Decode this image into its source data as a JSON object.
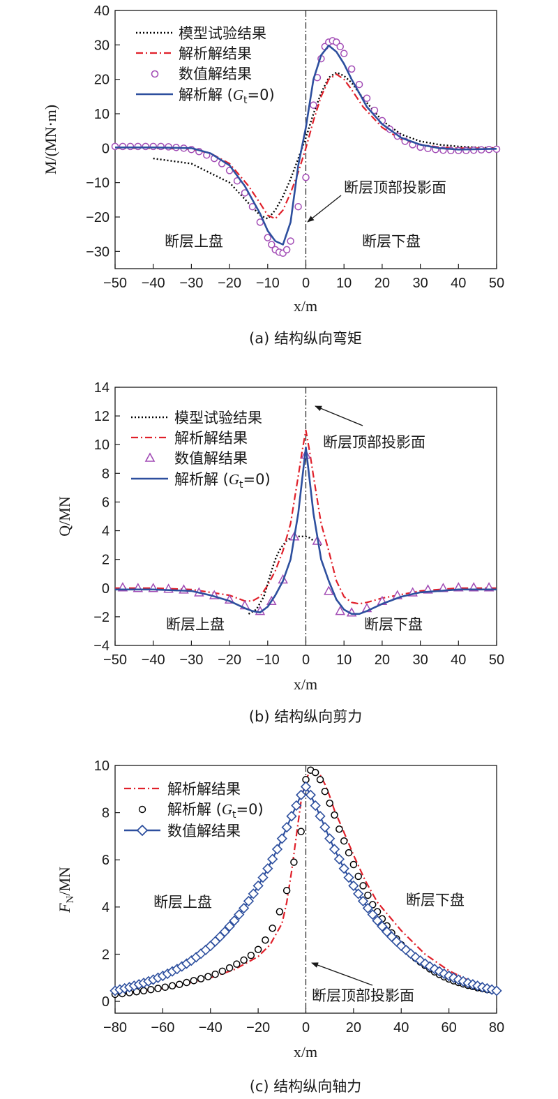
{
  "chart_data": [
    {
      "type": "line",
      "caption": "(a) 结构纵向弯矩",
      "xlabel": "x/m",
      "ylabel": "M/(MN·m)",
      "xlim": [
        -50,
        50
      ],
      "ylim": [
        -35,
        40
      ],
      "xticks": [
        "−50",
        "−40",
        "−30",
        "−20",
        "−10",
        "0",
        "10",
        "20",
        "30",
        "40",
        "50"
      ],
      "yticks": [
        "−30",
        "−20",
        "−10",
        "0",
        "10",
        "20",
        "30",
        "40"
      ],
      "legend_position": "top-left",
      "series": [
        {
          "name": "模型试验结果",
          "style": "dotted",
          "color": "#000000",
          "x": [
            -40,
            -30,
            -20,
            -15,
            -12,
            -10,
            -8,
            -6,
            -4,
            -2,
            0,
            2,
            4,
            6,
            8,
            10,
            12,
            15,
            20,
            25,
            30,
            35,
            40,
            45,
            50
          ],
          "y": [
            -3,
            -4.5,
            -10,
            -16,
            -19.5,
            -20.5,
            -18,
            -14,
            -9,
            -3,
            3,
            10,
            16,
            20.5,
            22,
            21,
            19,
            14.5,
            8,
            4,
            2,
            1,
            0.5,
            0.2,
            0
          ]
        },
        {
          "name": "解析解结果",
          "style": "dashdot",
          "color": "#e0202a",
          "x": [
            -50,
            -40,
            -30,
            -25,
            -20,
            -15,
            -12,
            -10,
            -8,
            -6,
            -4,
            -2,
            0,
            2,
            4,
            6,
            8,
            10,
            12,
            15,
            20,
            25,
            30,
            35,
            40,
            50
          ],
          "y": [
            0,
            0,
            -0.3,
            -1.5,
            -4.5,
            -11,
            -16,
            -19.5,
            -20.5,
            -18,
            -13,
            -7,
            0,
            8,
            15,
            20,
            21.5,
            20,
            17,
            12,
            6,
            2.5,
            1,
            0.3,
            0,
            0
          ]
        },
        {
          "name": "数值解结果",
          "style": "circles",
          "color": "#a24cb5",
          "x": [
            -50,
            -48,
            -46,
            -44,
            -42,
            -40,
            -38,
            -36,
            -34,
            -32,
            -30,
            -28,
            -26,
            -24,
            -22,
            -20,
            -18,
            -16,
            -14,
            -12,
            -10,
            -9,
            -8,
            -7,
            -6,
            -5,
            -4,
            -2,
            0,
            2,
            3,
            4,
            5,
            6,
            7,
            8,
            9,
            10,
            12,
            14,
            16,
            18,
            20,
            22,
            24,
            26,
            28,
            30,
            32,
            34,
            36,
            38,
            40,
            42,
            44,
            46,
            48,
            50
          ],
          "y": [
            0.5,
            0.5,
            0.5,
            0.5,
            0.5,
            0.5,
            0.5,
            0.4,
            0.2,
            0,
            -0.4,
            -1,
            -2,
            -3,
            -4.5,
            -6.5,
            -9.5,
            -13,
            -17,
            -21.5,
            -26,
            -28,
            -29.5,
            -30.2,
            -30.5,
            -29.5,
            -27,
            -17,
            -8.5,
            12.5,
            20.5,
            26,
            29.5,
            30.8,
            31.2,
            30.8,
            29.5,
            27.5,
            23,
            18.5,
            14.5,
            11,
            8,
            5.5,
            3.5,
            2,
            1,
            0.3,
            -0.1,
            -0.4,
            -0.6,
            -0.7,
            -0.7,
            -0.7,
            -0.6,
            -0.5,
            -0.4,
            -0.3
          ]
        },
        {
          "name": "解析解 (Gt=0)",
          "style": "solid",
          "color": "#2d4f9e",
          "x": [
            -50,
            -40,
            -30,
            -25,
            -20,
            -16,
            -12,
            -10,
            -8,
            -6,
            -4,
            -2,
            0,
            2,
            4,
            6,
            8,
            10,
            12,
            14,
            16,
            20,
            25,
            30,
            35,
            40,
            50
          ],
          "y": [
            0.2,
            0.2,
            0,
            -1.5,
            -5,
            -11,
            -19,
            -24,
            -27,
            -28,
            -21.5,
            -5,
            6,
            20,
            27,
            29.8,
            28,
            24.5,
            20,
            16,
            12,
            7,
            3,
            1,
            0,
            -0.4,
            -0.2
          ]
        }
      ],
      "annotations": [
        "断层顶部投影面",
        "断层上盘",
        "断层下盘"
      ]
    },
    {
      "type": "line",
      "caption": "(b) 结构纵向剪力",
      "xlabel": "x/m",
      "ylabel": "Q/MN",
      "xlim": [
        -50,
        50
      ],
      "ylim": [
        -4,
        14
      ],
      "xticks": [
        "−50",
        "−40",
        "−30",
        "−20",
        "−10",
        "0",
        "10",
        "20",
        "30",
        "40",
        "50"
      ],
      "yticks": [
        "−4",
        "−2",
        "0",
        "2",
        "4",
        "6",
        "8",
        "10",
        "12",
        "14"
      ],
      "legend_position": "top-left",
      "series": [
        {
          "name": "模型试验结果",
          "style": "dotted",
          "color": "#000000",
          "x": [
            -15,
            -13,
            -11,
            -10,
            -9,
            -8,
            -7,
            -6,
            -5,
            -4,
            -3,
            -2,
            -1,
            0,
            1,
            2,
            3,
            4
          ],
          "y": [
            -1.8,
            -1.5,
            -0.6,
            0.3,
            1.2,
            2,
            2.6,
            3,
            3.3,
            3.5,
            3.6,
            3.6,
            3.6,
            3.6,
            3.5,
            3.3,
            3.1,
            3
          ]
        },
        {
          "name": "解析解结果",
          "style": "dashdot",
          "color": "#e0202a",
          "x": [
            -50,
            -40,
            -30,
            -20,
            -16,
            -14,
            -12,
            -10,
            -8,
            -6,
            -4,
            -2,
            -1,
            0,
            1,
            2,
            4,
            6,
            8,
            10,
            12,
            14,
            16,
            20,
            30,
            40,
            50
          ],
          "y": [
            0,
            0,
            -0.1,
            -0.5,
            -0.9,
            -0.9,
            -0.6,
            0.2,
            1.2,
            2.6,
            4.5,
            7.8,
            9.5,
            11,
            9.5,
            7.8,
            4.5,
            2.6,
            0.5,
            -0.6,
            -1,
            -1.1,
            -1,
            -0.7,
            -0.2,
            0,
            0
          ]
        },
        {
          "name": "数值解结果",
          "style": "triangles",
          "color": "#a24cb5",
          "x": [
            -48,
            -44,
            -40,
            -36,
            -32,
            -28,
            -24,
            -20,
            -16,
            -12,
            -9,
            -6,
            -3,
            0,
            3,
            6,
            9,
            12,
            16,
            20,
            24,
            28,
            32,
            36,
            40,
            44,
            48
          ],
          "y": [
            0.05,
            0,
            0,
            -0.05,
            -0.1,
            -0.3,
            -0.5,
            -0.8,
            -1.2,
            -1.6,
            -0.9,
            0.6,
            3.6,
            9.3,
            3.3,
            -0.2,
            -1.6,
            -1.7,
            -1.4,
            -0.9,
            -0.5,
            -0.3,
            -0.1,
            0,
            0.05,
            0.05,
            0.05
          ]
        },
        {
          "name": "解析解 (Gt=0)",
          "style": "solid",
          "color": "#2d4f9e",
          "x": [
            -50,
            -40,
            -30,
            -25,
            -20,
            -16,
            -14,
            -12,
            -10,
            -8,
            -6,
            -4,
            -2,
            -1,
            0,
            1,
            2,
            4,
            6,
            8,
            10,
            12,
            14,
            16,
            20,
            25,
            30,
            40,
            50
          ],
          "y": [
            -0.1,
            -0.1,
            -0.2,
            -0.5,
            -0.9,
            -1.4,
            -1.6,
            -1.7,
            -1.3,
            -0.5,
            0.5,
            2,
            5.2,
            7.5,
            9.8,
            7.5,
            5.2,
            2,
            0.5,
            -0.8,
            -1.5,
            -1.8,
            -1.8,
            -1.6,
            -1.1,
            -0.6,
            -0.3,
            -0.1,
            -0.1
          ]
        }
      ],
      "annotations": [
        "断层顶部投影面",
        "断层上盘",
        "断层下盘"
      ]
    },
    {
      "type": "line",
      "caption": "(c) 结构纵向轴力",
      "xlabel": "x/m",
      "ylabel": "FN/MN",
      "xlim": [
        -80,
        80
      ],
      "ylim": [
        -0.5,
        10
      ],
      "xticks": [
        "−80",
        "−60",
        "−40",
        "−20",
        "0",
        "20",
        "40",
        "60",
        "80"
      ],
      "yticks": [
        "0",
        "2",
        "4",
        "6",
        "8",
        "10"
      ],
      "legend_position": "top-left",
      "series": [
        {
          "name": "解析解结果",
          "style": "dashdot",
          "color": "#e0202a",
          "x": [
            -80,
            -70,
            -60,
            -50,
            -40,
            -30,
            -20,
            -15,
            -10,
            -8,
            -6,
            -4,
            -2,
            0,
            2,
            4,
            6,
            8,
            10,
            12,
            15,
            20,
            25,
            30,
            40,
            50,
            60,
            70,
            80
          ],
          "y": [
            0.3,
            0.4,
            0.55,
            0.75,
            1,
            1.35,
            1.9,
            2.4,
            3.3,
            4.2,
            5.5,
            7,
            8.5,
            9.4,
            9.8,
            9.8,
            9.6,
            9.2,
            8.7,
            8.1,
            7.4,
            6.2,
            5.1,
            4.2,
            3,
            2,
            1.3,
            0.8,
            0.5
          ]
        },
        {
          "name": "解析解 (Gt=0)",
          "style": "circles",
          "color": "#000000",
          "x": [
            -80,
            -77,
            -74,
            -71,
            -68,
            -65,
            -62,
            -59,
            -56,
            -53,
            -50,
            -47,
            -44,
            -41,
            -38,
            -35,
            -32,
            -29,
            -26,
            -23,
            -20,
            -17,
            -14,
            -11,
            -8,
            -5,
            -2,
            0,
            2,
            4,
            6,
            8,
            10,
            12,
            14,
            16,
            18,
            20,
            22,
            24,
            26,
            28,
            30,
            32,
            34,
            36,
            38,
            40,
            42,
            44,
            46,
            48,
            50,
            52,
            54,
            56,
            58,
            60,
            62,
            64,
            66,
            68,
            70,
            72,
            74,
            76,
            78,
            80
          ],
          "y": [
            0.3,
            0.33,
            0.37,
            0.41,
            0.45,
            0.5,
            0.55,
            0.6,
            0.66,
            0.72,
            0.8,
            0.88,
            0.96,
            1.05,
            1.15,
            1.28,
            1.42,
            1.58,
            1.75,
            1.95,
            2.2,
            2.6,
            3.1,
            3.8,
            4.7,
            5.9,
            7.2,
            9.4,
            9.8,
            9.7,
            9.4,
            8.9,
            8.4,
            7.9,
            7.3,
            6.8,
            6.3,
            5.8,
            5.3,
            4.9,
            4.5,
            4.1,
            3.8,
            3.5,
            3.2,
            2.9,
            2.65,
            2.4,
            2.2,
            2,
            1.83,
            1.67,
            1.52,
            1.38,
            1.25,
            1.14,
            1.04,
            0.95,
            0.87,
            0.8,
            0.74,
            0.68,
            0.63,
            0.58,
            0.54,
            0.5,
            0.47,
            0.45
          ]
        },
        {
          "name": "数值解结果",
          "style": "diamonds",
          "color": "#2d4f9e",
          "x": [
            -80,
            -78,
            -76,
            -74,
            -72,
            -70,
            -68,
            -66,
            -64,
            -62,
            -60,
            -58,
            -56,
            -54,
            -52,
            -50,
            -48,
            -46,
            -44,
            -42,
            -40,
            -38,
            -36,
            -34,
            -32,
            -30,
            -28,
            -26,
            -24,
            -22,
            -20,
            -18,
            -16,
            -14,
            -12,
            -10,
            -8,
            -6,
            -4,
            -2,
            0,
            2,
            4,
            6,
            8,
            10,
            12,
            14,
            16,
            18,
            20,
            22,
            24,
            26,
            28,
            30,
            32,
            34,
            36,
            38,
            40,
            42,
            44,
            46,
            48,
            50,
            52,
            54,
            56,
            58,
            60,
            62,
            64,
            66,
            68,
            70,
            72,
            74,
            76,
            78,
            80
          ],
          "y": [
            0.45,
            0.5,
            0.55,
            0.6,
            0.66,
            0.72,
            0.78,
            0.85,
            0.92,
            1,
            1.08,
            1.17,
            1.27,
            1.37,
            1.48,
            1.6,
            1.73,
            1.87,
            2.02,
            2.18,
            2.35,
            2.54,
            2.74,
            2.95,
            3.18,
            3.42,
            3.68,
            3.95,
            4.25,
            4.56,
            4.9,
            5.25,
            5.63,
            6.03,
            6.45,
            6.9,
            7.38,
            7.85,
            8.3,
            8.75,
            9.1,
            8.75,
            8.3,
            7.85,
            7.38,
            6.9,
            6.45,
            6.03,
            5.63,
            5.25,
            4.9,
            4.56,
            4.25,
            3.95,
            3.68,
            3.42,
            3.18,
            2.95,
            2.74,
            2.54,
            2.35,
            2.18,
            2.02,
            1.87,
            1.73,
            1.6,
            1.48,
            1.37,
            1.27,
            1.17,
            1.08,
            1,
            0.92,
            0.85,
            0.78,
            0.72,
            0.66,
            0.6,
            0.55,
            0.5,
            0.45
          ]
        }
      ],
      "annotations": [
        "断层上盘",
        "断层下盘",
        "断层顶部投影面"
      ]
    }
  ]
}
